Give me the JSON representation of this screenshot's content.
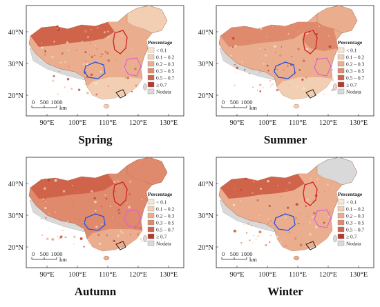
{
  "panels": [
    {
      "season": "Spring"
    },
    {
      "season": "Summer"
    },
    {
      "season": "Autumn"
    },
    {
      "season": "Winter"
    }
  ],
  "axes": {
    "lat_labels": [
      "40°N",
      "30°N",
      "20°N"
    ],
    "lon_labels": [
      "90°E",
      "100°E",
      "110°E",
      "120°E",
      "130°E"
    ]
  },
  "legend": {
    "title": "Percentage",
    "items": [
      {
        "label": "< 0.1",
        "color": "#f7e6d2"
      },
      {
        "label": "0.1 – 0.2",
        "color": "#f2cfb2"
      },
      {
        "label": "0.2 – 0.3",
        "color": "#eaae8f"
      },
      {
        "label": "0.3 – 0.5",
        "color": "#df8a6d"
      },
      {
        "label": "0.5 – 0.7",
        "color": "#cf644b"
      },
      {
        "label": "≥ 0.7",
        "color": "#b53a2d"
      },
      {
        "label": "Nodata",
        "color": "#d9d9d9"
      }
    ]
  },
  "scalebar": {
    "ticks": [
      "0",
      "500",
      "1000"
    ],
    "unit": "km"
  },
  "highlight_colors": {
    "red_region": "#d01f1f",
    "blue_region": "#2a4fd6",
    "pink_region": "#e05fd0",
    "dark_region": "#3a2a1a"
  }
}
